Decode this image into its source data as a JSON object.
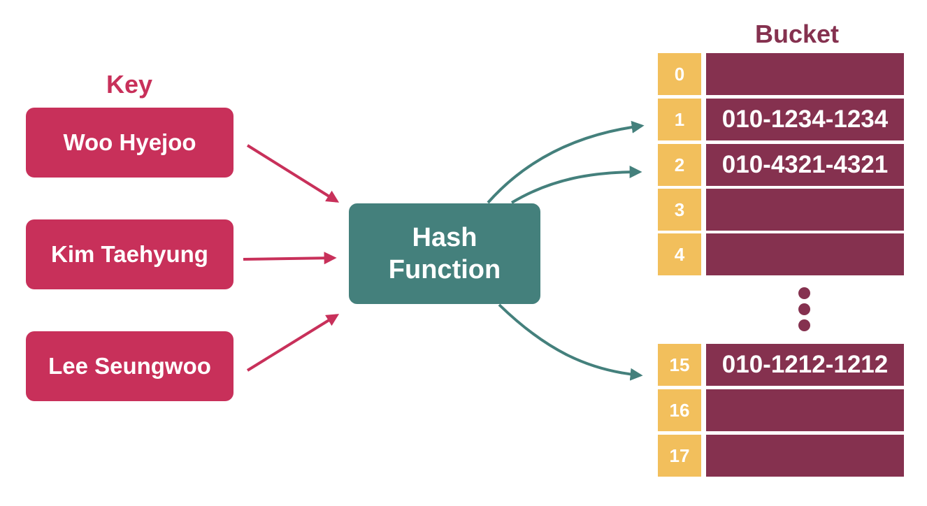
{
  "diagram": {
    "key_heading": "Key",
    "bucket_heading": "Bucket",
    "keys": [
      "Woo Hyejoo",
      "Kim Taehyung",
      "Lee Seungwoo"
    ],
    "hash_function": {
      "line1": "Hash",
      "line2": "Function"
    },
    "buckets": [
      {
        "index": "0",
        "value": ""
      },
      {
        "index": "1",
        "value": "010-1234-1234"
      },
      {
        "index": "2",
        "value": "010-4321-4321"
      },
      {
        "index": "3",
        "value": ""
      },
      {
        "index": "4",
        "value": ""
      },
      {
        "index": "15",
        "value": "010-1212-1212"
      },
      {
        "index": "16",
        "value": ""
      },
      {
        "index": "17",
        "value": ""
      }
    ],
    "colors": {
      "key": "#c8305a",
      "hash": "#44807c",
      "bucket_index": "#f2bf5c",
      "bucket_value": "#85314f"
    }
  }
}
